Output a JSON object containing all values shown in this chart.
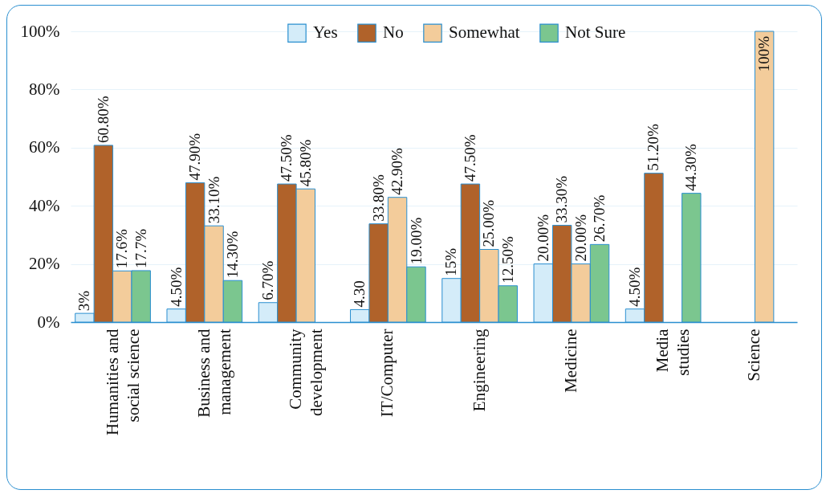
{
  "chart_data": {
    "type": "bar",
    "categories": [
      "Humanities and\nsocial science",
      "Business and\nmanagement",
      "Community\ndevelopment",
      "IT/Computer",
      "Engineering",
      "Medicine",
      "Media\nstudies",
      "Science"
    ],
    "series": [
      {
        "name": "Yes",
        "color": "#d4ecf9",
        "values": [
          3,
          4.5,
          6.7,
          4.3,
          15,
          20,
          4.5,
          null
        ],
        "value_labels": [
          "3%",
          "4.50%",
          "6.70%",
          "4.30",
          "15%",
          "20.00%",
          "4.50%",
          null
        ]
      },
      {
        "name": "No",
        "color": "#b0622a",
        "values": [
          60.8,
          47.9,
          47.5,
          33.8,
          47.5,
          33.3,
          51.2,
          null
        ],
        "value_labels": [
          "60.80%",
          "47.90%",
          "47.50%",
          "33.80%",
          "47.50%",
          "33.30%",
          "51.20%",
          null
        ]
      },
      {
        "name": "Somewhat",
        "color": "#f3cc9b",
        "values": [
          17.6,
          33.1,
          45.8,
          42.9,
          25,
          20,
          null,
          100
        ],
        "value_labels": [
          "17.6%",
          "33.10%",
          "45.80%",
          "42.90%",
          "25.00%",
          "20.00%",
          null,
          "100%"
        ]
      },
      {
        "name": "Not Sure",
        "color": "#7bc68f",
        "values": [
          17.7,
          14.3,
          null,
          19,
          12.5,
          26.7,
          44.3,
          null
        ],
        "value_labels": [
          "17.7%",
          "14.30%",
          null,
          "19.00%",
          "12.50%",
          "26.70%",
          "44.30%",
          null
        ]
      }
    ],
    "ylim": [
      0,
      100
    ],
    "yticks": [
      {
        "value": 0,
        "label": "0%"
      },
      {
        "value": 20,
        "label": "20%"
      },
      {
        "value": 40,
        "label": "40%"
      },
      {
        "value": 60,
        "label": "60%"
      },
      {
        "value": 80,
        "label": "80%"
      },
      {
        "value": 100,
        "label": "100%"
      }
    ],
    "grid": "y",
    "legend": "top"
  }
}
